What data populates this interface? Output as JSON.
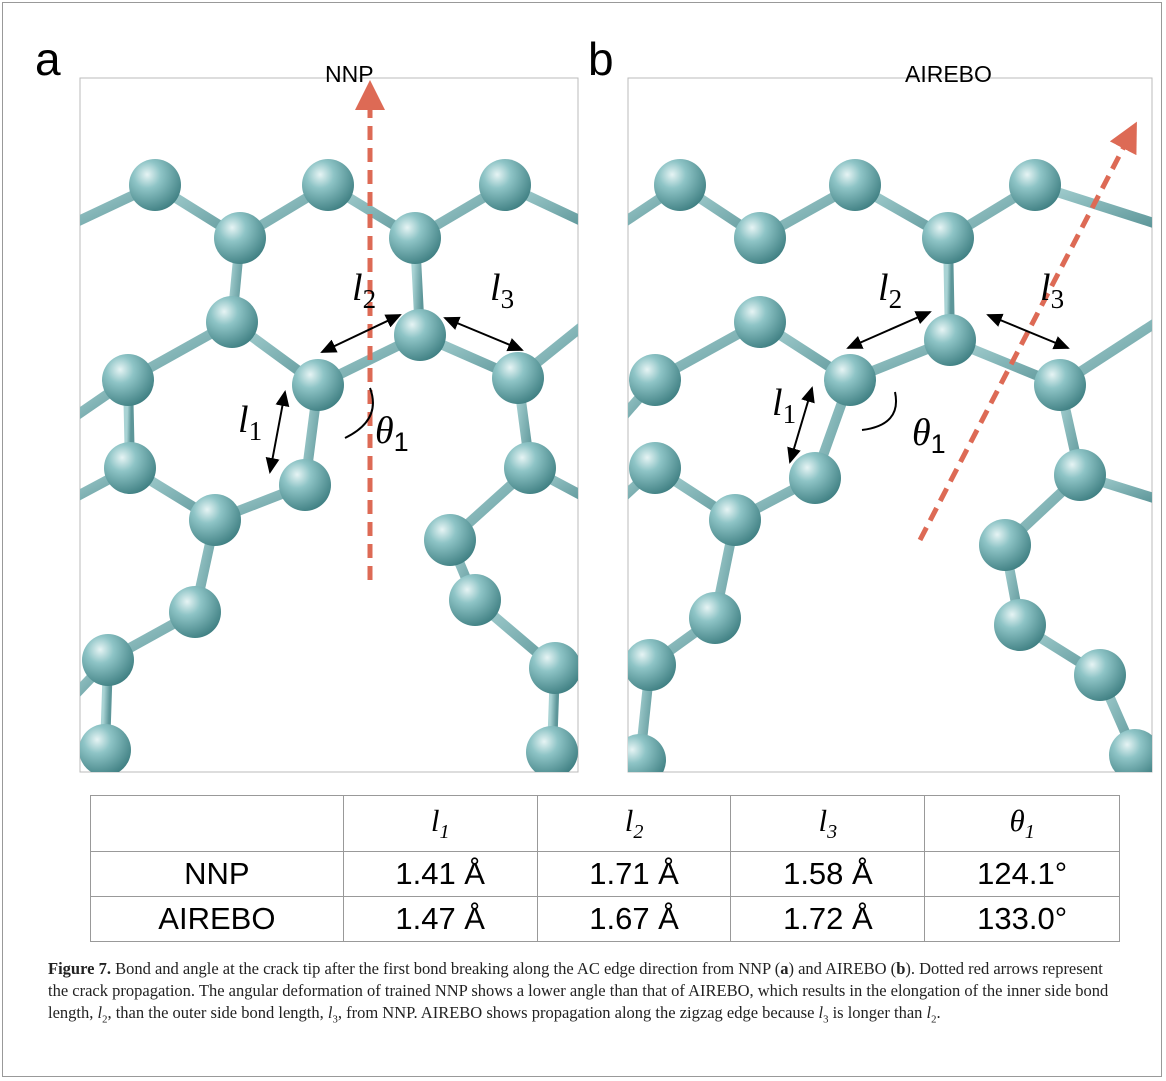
{
  "panels": [
    {
      "label": "a",
      "title": "NNP",
      "annotations": [
        {
          "symbol": "l",
          "subscript": "2"
        },
        {
          "symbol": "l",
          "subscript": "3"
        },
        {
          "symbol": "l",
          "subscript": "1"
        },
        {
          "symbol": "θ",
          "subscript": "1"
        }
      ]
    },
    {
      "label": "b",
      "title": "AIREBO",
      "annotations": [
        {
          "symbol": "l",
          "subscript": "2"
        },
        {
          "symbol": "l",
          "subscript": "3"
        },
        {
          "symbol": "l",
          "subscript": "1"
        },
        {
          "symbol": "θ",
          "subscript": "1"
        }
      ]
    }
  ],
  "table": {
    "header": [
      {
        "symbol": "l",
        "subscript": "1"
      },
      {
        "symbol": "l",
        "subscript": "2"
      },
      {
        "symbol": "l",
        "subscript": "3"
      },
      {
        "symbol": "θ",
        "subscript": "1"
      }
    ],
    "rows": [
      [
        "NNP",
        "1.41 Å",
        "1.71 Å",
        "1.58 Å",
        "124.1°"
      ],
      [
        "AIREBO",
        "1.47 Å",
        "1.67 Å",
        "1.72 Å",
        "133.0°"
      ]
    ]
  },
  "caption": [
    {
      "text": "Figure 7.",
      "style": "bold"
    },
    {
      "text": " Bond and angle at the crack tip after the first bond breaking along the AC edge direction from NNP (",
      "style": "plain"
    },
    {
      "text": "a",
      "style": "bold"
    },
    {
      "text": ") and AIREBO (",
      "style": "plain"
    },
    {
      "text": "b",
      "style": "bold"
    },
    {
      "text": "). Dotted red arrows represent the crack propagation. The angular deformation of trained NNP shows a lower angle than that of AIREBO, which results in the elongation of the inner side bond length, ",
      "style": "plain"
    },
    {
      "text": "l",
      "style": "italic"
    },
    {
      "text": "2",
      "style": "sub"
    },
    {
      "text": ", than the outer side bond length, ",
      "style": "plain"
    },
    {
      "text": "l",
      "style": "italic"
    },
    {
      "text": "3",
      "style": "sub"
    },
    {
      "text": ", from NNP. AIREBO shows propagation along the zigzag edge because ",
      "style": "plain"
    },
    {
      "text": "l",
      "style": "italic"
    },
    {
      "text": "3",
      "style": "sub"
    },
    {
      "text": " is longer than ",
      "style": "plain"
    },
    {
      "text": "l",
      "style": "italic"
    },
    {
      "text": "2",
      "style": "sub"
    },
    {
      "text": ".",
      "style": "plain"
    }
  ]
}
